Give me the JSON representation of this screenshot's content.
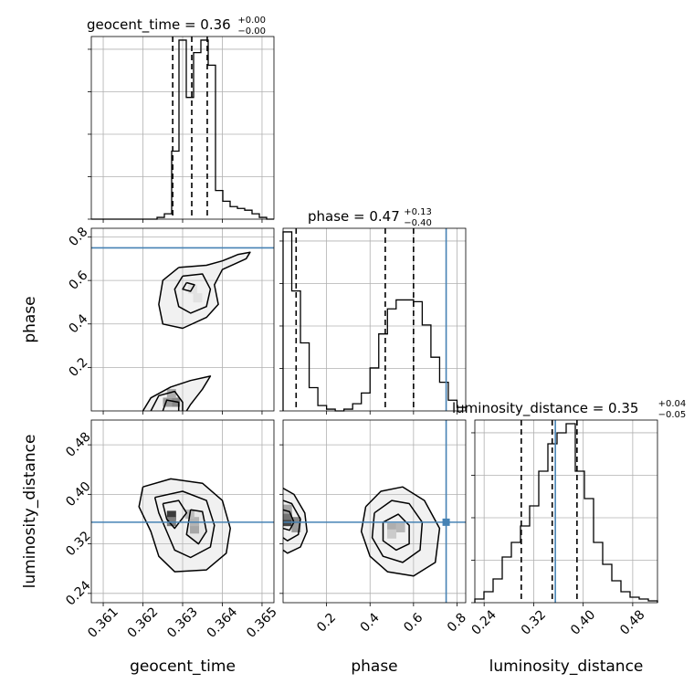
{
  "chart_data": {
    "type": "corner",
    "parameters": [
      {
        "name": "geocent_time",
        "axis_label": "geocent_time",
        "title_main": "geocent_time = 0.36",
        "title_sup": "+0.00",
        "title_sub": "−0.00",
        "range": [
          0.3607,
          0.3653
        ],
        "ticks": [
          0.361,
          0.362,
          0.363,
          0.364,
          0.365
        ],
        "tick_labels": [
          "0.361",
          "0.362",
          "0.363",
          "0.364",
          "0.365"
        ],
        "quantiles": [
          0.36275,
          0.36323,
          0.36362
        ],
        "truth": null,
        "histogram": [
          0,
          0,
          0,
          0,
          0,
          0,
          0,
          0,
          0,
          0.01,
          0.03,
          0.38,
          1.0,
          0.68,
          0.93,
          1.0,
          0.86,
          0.16,
          0.1,
          0.07,
          0.06,
          0.05,
          0.03,
          0.01,
          0.0
        ],
        "hist_max": 1.02
      },
      {
        "name": "phase",
        "axis_label": "phase",
        "title_main": "phase = 0.47",
        "title_sup": "+0.13",
        "title_sub": "−0.40",
        "range": [
          0.0,
          0.84
        ],
        "ticks": [
          0.2,
          0.4,
          0.6,
          0.8
        ],
        "tick_labels": [
          "0.2",
          "0.4",
          "0.6",
          "0.8"
        ],
        "quantiles": [
          0.06,
          0.47,
          0.6
        ],
        "truth": 0.75,
        "histogram": [
          1.0,
          0.67,
          0.38,
          0.13,
          0.03,
          0.01,
          0.0,
          0.01,
          0.04,
          0.1,
          0.24,
          0.43,
          0.57,
          0.62,
          0.62,
          0.61,
          0.48,
          0.3,
          0.16,
          0.06,
          0.02
        ],
        "hist_max": 1.02
      },
      {
        "name": "luminosity_distance",
        "axis_label": "luminosity_distance",
        "title_main": "luminosity_distance = 0.35",
        "title_sup": "+0.04",
        "title_sub": "−0.05",
        "range": [
          0.225,
          0.52
        ],
        "ticks": [
          0.24,
          0.32,
          0.4,
          0.48
        ],
        "tick_labels": [
          "0.24",
          "0.32",
          "0.40",
          "0.48"
        ],
        "quantiles": [
          0.3,
          0.35,
          0.39
        ],
        "truth": 0.355,
        "histogram": [
          0.02,
          0.06,
          0.13,
          0.25,
          0.33,
          0.42,
          0.53,
          0.72,
          0.87,
          0.93,
          0.98,
          0.72,
          0.57,
          0.33,
          0.21,
          0.12,
          0.06,
          0.03,
          0.02,
          0.01
        ],
        "hist_max": 1.0
      }
    ],
    "pairs": [
      {
        "x": "geocent_time",
        "y": "phase",
        "density_cells": [
          {
            "x": 0.36272,
            "y": 0.04,
            "w": 0.9
          },
          {
            "x": 0.36282,
            "y": 0.04,
            "w": 0.55
          },
          {
            "x": 0.36262,
            "y": 0.04,
            "w": 0.45
          },
          {
            "x": 0.36272,
            "y": 0.08,
            "w": 0.35
          },
          {
            "x": 0.36325,
            "y": 0.56,
            "w": 0.08
          },
          {
            "x": 0.36338,
            "y": 0.52,
            "w": 0.08
          }
        ],
        "contours": [
          [
            [
              0.3629,
              0.66
            ],
            [
              0.3636,
              0.67
            ],
            [
              0.364,
              0.69
            ],
            [
              0.3644,
              0.72
            ],
            [
              0.3647,
              0.73
            ],
            [
              0.3646,
              0.7
            ],
            [
              0.364,
              0.65
            ],
            [
              0.3638,
              0.58
            ],
            [
              0.3639,
              0.49
            ],
            [
              0.3636,
              0.43
            ],
            [
              0.363,
              0.38
            ],
            [
              0.3625,
              0.4
            ],
            [
              0.3624,
              0.49
            ],
            [
              0.3625,
              0.6
            ],
            [
              0.3629,
              0.66
            ]
          ],
          [
            [
              0.363,
              0.62
            ],
            [
              0.3635,
              0.63
            ],
            [
              0.3637,
              0.56
            ],
            [
              0.3636,
              0.48
            ],
            [
              0.3632,
              0.45
            ],
            [
              0.3629,
              0.48
            ],
            [
              0.3628,
              0.56
            ],
            [
              0.363,
              0.62
            ]
          ],
          [
            [
              0.3631,
              0.59
            ],
            [
              0.3633,
              0.58
            ],
            [
              0.3632,
              0.55
            ],
            [
              0.363,
              0.56
            ],
            [
              0.3631,
              0.59
            ]
          ],
          [
            [
              0.362,
              0.0
            ],
            [
              0.3622,
              0.06
            ],
            [
              0.3627,
              0.11
            ],
            [
              0.3632,
              0.14
            ],
            [
              0.3637,
              0.16
            ],
            [
              0.3635,
              0.1
            ],
            [
              0.3632,
              0.03
            ],
            [
              0.3631,
              0.0
            ]
          ],
          [
            [
              0.3622,
              0.0
            ],
            [
              0.3624,
              0.07
            ],
            [
              0.3628,
              0.09
            ],
            [
              0.363,
              0.04
            ],
            [
              0.363,
              0.0
            ]
          ],
          [
            [
              0.3625,
              0.0
            ],
            [
              0.3626,
              0.05
            ],
            [
              0.3629,
              0.04
            ],
            [
              0.3629,
              0.0
            ]
          ]
        ]
      },
      {
        "x": "geocent_time",
        "y": "luminosity_distance",
        "density_cells": [
          {
            "x": 0.36272,
            "y": 0.366,
            "w": 0.95
          },
          {
            "x": 0.36272,
            "y": 0.356,
            "w": 0.6
          },
          {
            "x": 0.3633,
            "y": 0.344,
            "w": 0.45
          },
          {
            "x": 0.3633,
            "y": 0.356,
            "w": 0.35
          },
          {
            "x": 0.36318,
            "y": 0.368,
            "w": 0.3
          }
        ],
        "contours": [
          [
            [
              0.362,
              0.412
            ],
            [
              0.3627,
              0.425
            ],
            [
              0.3635,
              0.418
            ],
            [
              0.364,
              0.39
            ],
            [
              0.3642,
              0.345
            ],
            [
              0.3641,
              0.305
            ],
            [
              0.3636,
              0.278
            ],
            [
              0.3628,
              0.275
            ],
            [
              0.3624,
              0.3
            ],
            [
              0.3622,
              0.34
            ],
            [
              0.3619,
              0.38
            ],
            [
              0.362,
              0.412
            ]
          ],
          [
            [
              0.3623,
              0.395
            ],
            [
              0.363,
              0.405
            ],
            [
              0.3636,
              0.39
            ],
            [
              0.3638,
              0.35
            ],
            [
              0.3637,
              0.315
            ],
            [
              0.3632,
              0.298
            ],
            [
              0.3628,
              0.31
            ],
            [
              0.3626,
              0.34
            ],
            [
              0.3624,
              0.37
            ],
            [
              0.3623,
              0.395
            ]
          ],
          [
            [
              0.3625,
              0.385
            ],
            [
              0.3629,
              0.39
            ],
            [
              0.3631,
              0.37
            ],
            [
              0.3628,
              0.345
            ],
            [
              0.3626,
              0.36
            ],
            [
              0.3625,
              0.385
            ]
          ],
          [
            [
              0.3632,
              0.375
            ],
            [
              0.3635,
              0.372
            ],
            [
              0.3636,
              0.34
            ],
            [
              0.3634,
              0.32
            ],
            [
              0.3631,
              0.335
            ],
            [
              0.3632,
              0.375
            ]
          ]
        ]
      },
      {
        "x": "phase",
        "y": "luminosity_distance",
        "density_cells": [
          {
            "x": 0.02,
            "y": 0.356,
            "w": 0.9
          },
          {
            "x": 0.02,
            "y": 0.366,
            "w": 0.65
          },
          {
            "x": 0.06,
            "y": 0.356,
            "w": 0.55
          },
          {
            "x": 0.02,
            "y": 0.376,
            "w": 0.4
          },
          {
            "x": 0.06,
            "y": 0.346,
            "w": 0.45
          },
          {
            "x": 0.5,
            "y": 0.346,
            "w": 0.35
          },
          {
            "x": 0.54,
            "y": 0.346,
            "w": 0.3
          },
          {
            "x": 0.5,
            "y": 0.336,
            "w": 0.2
          }
        ],
        "contours": [
          [
            [
              0.0,
              0.41
            ],
            [
              0.05,
              0.4
            ],
            [
              0.1,
              0.37
            ],
            [
              0.11,
              0.34
            ],
            [
              0.08,
              0.315
            ],
            [
              0.02,
              0.305
            ],
            [
              0.0,
              0.31
            ]
          ],
          [
            [
              0.0,
              0.39
            ],
            [
              0.04,
              0.385
            ],
            [
              0.08,
              0.36
            ],
            [
              0.07,
              0.335
            ],
            [
              0.02,
              0.325
            ],
            [
              0.0,
              0.33
            ]
          ],
          [
            [
              0.0,
              0.375
            ],
            [
              0.03,
              0.372
            ],
            [
              0.05,
              0.355
            ],
            [
              0.03,
              0.342
            ],
            [
              0.0,
              0.345
            ]
          ],
          [
            [
              0.38,
              0.38
            ],
            [
              0.45,
              0.405
            ],
            [
              0.55,
              0.412
            ],
            [
              0.65,
              0.39
            ],
            [
              0.72,
              0.345
            ],
            [
              0.7,
              0.29
            ],
            [
              0.6,
              0.268
            ],
            [
              0.48,
              0.275
            ],
            [
              0.4,
              0.3
            ],
            [
              0.36,
              0.34
            ],
            [
              0.38,
              0.38
            ]
          ],
          [
            [
              0.42,
              0.37
            ],
            [
              0.5,
              0.39
            ],
            [
              0.58,
              0.385
            ],
            [
              0.64,
              0.355
            ],
            [
              0.63,
              0.31
            ],
            [
              0.55,
              0.29
            ],
            [
              0.46,
              0.3
            ],
            [
              0.41,
              0.33
            ],
            [
              0.42,
              0.37
            ]
          ],
          [
            [
              0.46,
              0.355
            ],
            [
              0.53,
              0.368
            ],
            [
              0.58,
              0.35
            ],
            [
              0.58,
              0.32
            ],
            [
              0.52,
              0.31
            ],
            [
              0.46,
              0.325
            ],
            [
              0.46,
              0.355
            ]
          ]
        ]
      }
    ],
    "grid": true,
    "truth_color": "#4682b4",
    "line_color": "#000000"
  }
}
